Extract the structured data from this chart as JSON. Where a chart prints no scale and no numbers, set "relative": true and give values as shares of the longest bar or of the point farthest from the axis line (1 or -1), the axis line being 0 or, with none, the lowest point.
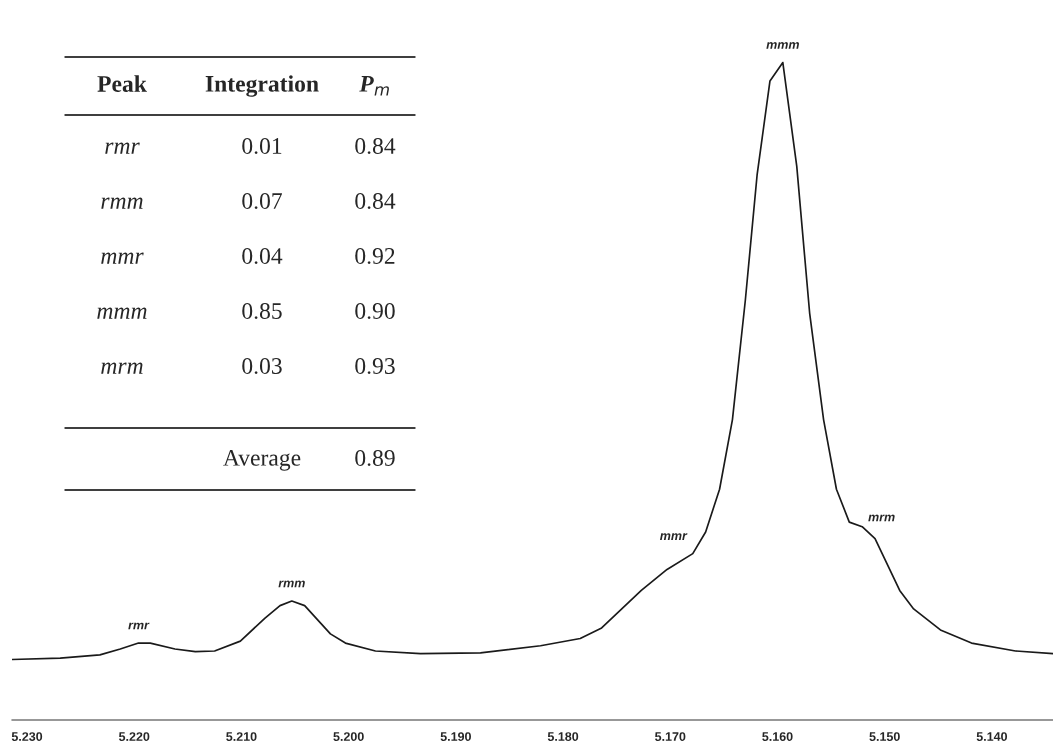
{
  "chart_data": {
    "type": "line",
    "relative": true,
    "line_style": "solid",
    "marker": "none",
    "grid": false,
    "legend": false,
    "tick_labels": "x",
    "xlim": [
      5.2314,
      5.1343
    ],
    "xticks": [
      {
        "value": 5.23,
        "label": "5.230"
      },
      {
        "value": 5.22,
        "label": "5.220"
      },
      {
        "value": 5.21,
        "label": "5.210"
      },
      {
        "value": 5.2,
        "label": "5.200"
      },
      {
        "value": 5.19,
        "label": "5.190"
      },
      {
        "value": 5.18,
        "label": "5.180"
      },
      {
        "value": 5.17,
        "label": "5.170"
      },
      {
        "value": 5.16,
        "label": "5.160"
      },
      {
        "value": 5.15,
        "label": "5.150"
      },
      {
        "value": 5.14,
        "label": "5.140"
      }
    ],
    "series": [
      {
        "color": "#1a1a1a",
        "x": [
          5.2314,
          5.2269,
          5.2232,
          5.2213,
          5.2196,
          5.2185,
          5.2162,
          5.2143,
          5.2125,
          5.2101,
          5.2078,
          5.2064,
          5.2053,
          5.2041,
          5.2017,
          5.2003,
          5.1975,
          5.1933,
          5.1877,
          5.1821,
          5.1784,
          5.1764,
          5.1727,
          5.1703,
          5.1679,
          5.1667,
          5.1654,
          5.1642,
          5.163,
          5.1619,
          5.1607,
          5.1595,
          5.1582,
          5.157,
          5.1557,
          5.1545,
          5.1533,
          5.1521,
          5.1509,
          5.1486,
          5.1473,
          5.1448,
          5.1419,
          5.1378,
          5.1343
        ],
        "values": [
          0.092,
          0.094,
          0.099,
          0.108,
          0.117,
          0.117,
          0.108,
          0.104,
          0.105,
          0.12,
          0.155,
          0.174,
          0.181,
          0.174,
          0.131,
          0.117,
          0.105,
          0.101,
          0.102,
          0.113,
          0.124,
          0.14,
          0.197,
          0.229,
          0.253,
          0.286,
          0.351,
          0.457,
          0.638,
          0.829,
          0.972,
          1.0,
          0.842,
          0.619,
          0.457,
          0.351,
          0.301,
          0.294,
          0.276,
          0.197,
          0.169,
          0.137,
          0.117,
          0.105,
          0.101
        ]
      }
    ],
    "annotations": [
      {
        "text": "rmr",
        "x": 5.2196,
        "y": 0.117
      },
      {
        "text": "rmm",
        "x": 5.2053,
        "y": 0.181
      },
      {
        "text": "mmr",
        "x": 5.1679,
        "y": 0.253
      },
      {
        "text": "mmm",
        "x": 5.1595,
        "y": 1.0
      },
      {
        "text": "mrm",
        "x": 5.1521,
        "y": 0.294
      },
      "Peak",
      "Integration",
      "P$_{m}$",
      "rmr",
      "0.01",
      "0.84",
      "rmm",
      "0.07",
      "0.84",
      "mmr",
      "0.04",
      "0.92",
      "mmm",
      "0.85",
      "0.90",
      "mrm",
      "0.03",
      "0.93",
      "Average",
      "0.89"
    ]
  }
}
